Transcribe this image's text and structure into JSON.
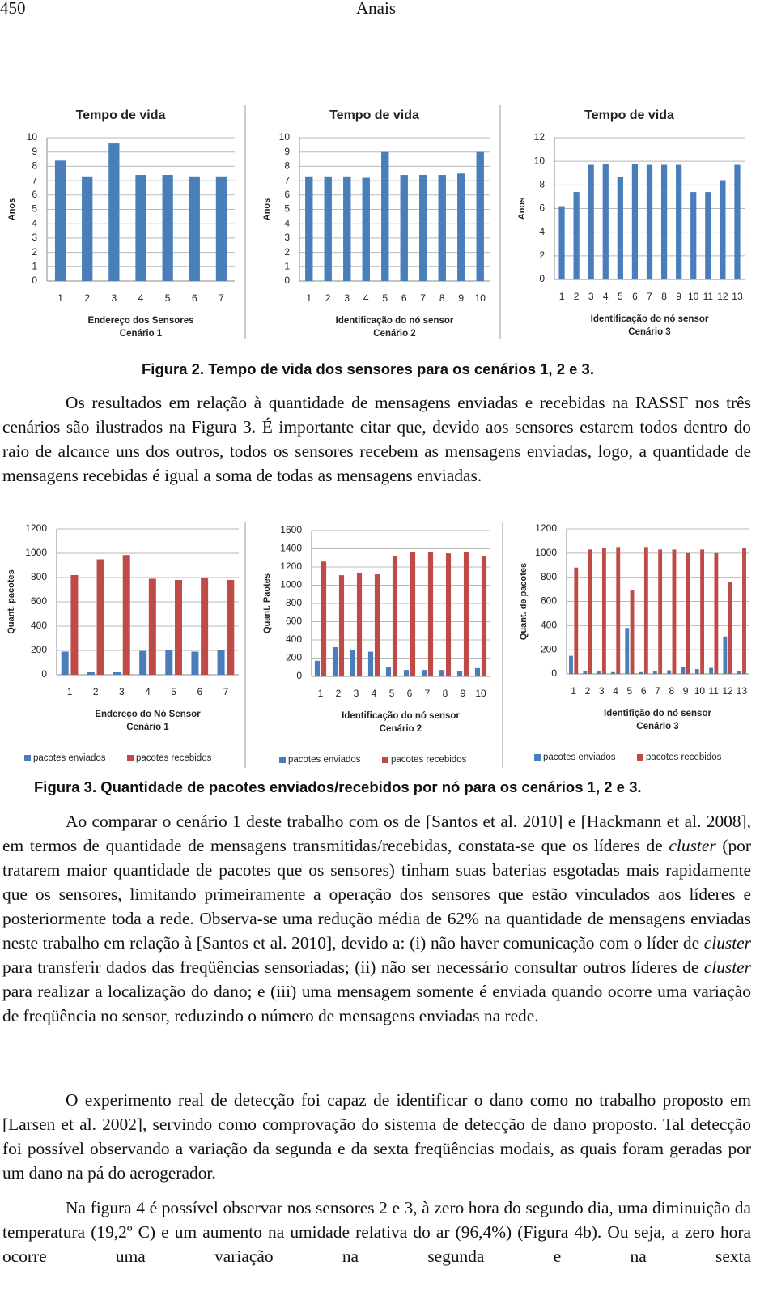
{
  "header": {
    "page": "450",
    "title": "Anais"
  },
  "chart_data": [
    {
      "type": "bar",
      "title": "Tempo de vida",
      "y_label": "Anos",
      "x_label": "Endereço dos Sensores",
      "subtitle": "Cenário 1",
      "categories": [
        "1",
        "2",
        "3",
        "4",
        "5",
        "6",
        "7"
      ],
      "values": [
        8.4,
        7.3,
        9.6,
        7.4,
        7.4,
        7.3,
        7.3
      ],
      "color": "#4a7ebb",
      "ylim": [
        0,
        10
      ],
      "yticks": [
        0,
        1,
        2,
        3,
        4,
        5,
        6,
        7,
        8,
        9,
        10
      ],
      "grid": true
    },
    {
      "type": "bar",
      "title": "Tempo de vida",
      "y_label": "Anos",
      "x_label": "Identificação do nó sensor",
      "subtitle": "Cenário 2",
      "categories": [
        "1",
        "2",
        "3",
        "4",
        "5",
        "6",
        "7",
        "8",
        "9",
        "10"
      ],
      "values": [
        7.3,
        7.3,
        7.3,
        7.2,
        9.0,
        7.4,
        7.4,
        7.4,
        7.5,
        9.0
      ],
      "color": "#4a7ebb",
      "ylim": [
        0,
        10
      ],
      "yticks": [
        0,
        1,
        2,
        3,
        4,
        5,
        6,
        7,
        8,
        9,
        10
      ],
      "grid": true
    },
    {
      "type": "bar",
      "title": "Tempo de vida",
      "y_label": "Anos",
      "x_label": "Identificação do nó sensor",
      "subtitle": "Cenário 3",
      "categories": [
        "1",
        "2",
        "3",
        "4",
        "5",
        "6",
        "7",
        "8",
        "9",
        "10",
        "11",
        "12",
        "13"
      ],
      "values": [
        6.2,
        7.4,
        9.7,
        9.8,
        8.7,
        9.8,
        9.7,
        9.7,
        9.7,
        7.4,
        7.4,
        8.4,
        9.7
      ],
      "color": "#4a7ebb",
      "ylim": [
        0,
        12
      ],
      "yticks": [
        0,
        2,
        4,
        6,
        8,
        10,
        12
      ],
      "grid": true
    },
    {
      "type": "grouped_bar",
      "y_label": "Quant. pacotes",
      "x_label": "Endereço do Nó Sensor",
      "subtitle": "Cenário 1",
      "categories": [
        "1",
        "2",
        "3",
        "4",
        "5",
        "6",
        "7"
      ],
      "series": [
        {
          "name": "pacotes enviados",
          "color": "#4a7ebb",
          "values": [
            190,
            20,
            20,
            195,
            205,
            190,
            205
          ]
        },
        {
          "name": "pacotes recebidos",
          "color": "#be4b48",
          "values": [
            820,
            950,
            985,
            790,
            780,
            800,
            780
          ]
        }
      ],
      "ylim": [
        0,
        1200
      ],
      "yticks": [
        0,
        200,
        400,
        600,
        800,
        1000,
        1200
      ],
      "grid": true,
      "legend": "bottom"
    },
    {
      "type": "grouped_bar",
      "y_label": "Quant. Paotes",
      "x_label": "Identificação do nó sensor",
      "subtitle": "Cenário 2",
      "categories": [
        "1",
        "2",
        "3",
        "4",
        "5",
        "6",
        "7",
        "8",
        "9",
        "10"
      ],
      "series": [
        {
          "name": "pacotes enviados",
          "color": "#4a7ebb",
          "values": [
            170,
            320,
            290,
            270,
            100,
            70,
            70,
            70,
            60,
            90
          ]
        },
        {
          "name": "pacotes recebidos",
          "color": "#be4b48",
          "values": [
            1260,
            1110,
            1130,
            1120,
            1320,
            1360,
            1360,
            1350,
            1360,
            1320
          ]
        }
      ],
      "ylim": [
        0,
        1600
      ],
      "yticks": [
        0,
        200,
        400,
        600,
        800,
        1000,
        1200,
        1400,
        1600
      ],
      "grid": true,
      "legend": "bottom"
    },
    {
      "type": "grouped_bar",
      "y_label": "Quant. de pacotes",
      "x_label": "Identifição do nó sensor",
      "subtitle": "Cenário 3",
      "categories": [
        "1",
        "2",
        "3",
        "4",
        "5",
        "6",
        "7",
        "8",
        "9",
        "10",
        "11",
        "12",
        "13"
      ],
      "series": [
        {
          "name": "pacotes enviados",
          "color": "#4a7ebb",
          "values": [
            150,
            25,
            20,
            15,
            380,
            15,
            20,
            30,
            60,
            40,
            50,
            310,
            25
          ]
        },
        {
          "name": "pacotes recebidos",
          "color": "#be4b48",
          "values": [
            880,
            1030,
            1040,
            1050,
            690,
            1050,
            1030,
            1030,
            1000,
            1030,
            1000,
            760,
            1040
          ]
        }
      ],
      "ylim": [
        0,
        1200
      ],
      "yticks": [
        0,
        200,
        400,
        600,
        800,
        1000,
        1200
      ],
      "grid": true,
      "legend": "bottom"
    }
  ],
  "captions": [
    "Figura 2. Tempo de vida dos sensores para os cenários 1, 2 e 3.",
    "Figura 3. Quantidade de pacotes enviados/recebidos por nó para os cenários 1, 2 e 3."
  ],
  "paragraphs": [
    [
      "Os resultados em relação à quantidade de mensagens enviadas e recebidas na RASSF nos três cenários são ilustrados na Figura 3. É importante citar que, devido aos sensores estarem todos dentro do raio de alcance uns dos outros, todos os sensores recebem as mensagens enviadas, logo, a quantidade de mensagens recebidas é igual a soma de todas as mensagens enviadas."
    ],
    [
      "Ao comparar o cenário 1 deste trabalho com os de [Santos et al. 2010] e [Hackmann et al. 2008], em termos de quantidade de mensagens transmitidas/recebidas, constata-se que os líderes de ",
      "cluster",
      " (por tratarem maior quantidade de pacotes que os sensores) tinham suas baterias esgotadas mais rapidamente que os sensores, limitando primeiramente a operação dos sensores que estão vinculados aos líderes e posteriormente toda a rede. Observa-se uma redução média de 62% na quantidade de mensagens enviadas neste trabalho em relação à [Santos et al. 2010], devido a: (i) não haver comunicação com o líder de ",
      "cluster",
      " para transferir dados das freqüências sensoriadas; (ii) não ser necessário consultar outros líderes de ",
      "cluster",
      " para realizar a localização do dano; e (iii) uma mensagem somente é enviada quando ocorre uma variação de freqüência no sensor, reduzindo o número de mensagens enviadas na rede."
    ],
    [
      "O experimento real de detecção foi capaz de identificar o dano como no trabalho proposto em [Larsen et al. 2002], servindo como comprovação do sistema de detecção de dano proposto. Tal detecção foi possível observando a variação da segunda e da sexta freqüências modais, as quais foram geradas por um dano na pá do aerogerador."
    ],
    [
      "Na figura 4 é possível observar nos sensores 2 e 3, à zero hora do segundo dia, uma diminuição da temperatura (19,2º C) e um aumento na umidade relativa do ar (96,4%) (Figura 4b). Ou seja, a zero hora ocorre uma variação na segunda e na sexta"
    ]
  ]
}
